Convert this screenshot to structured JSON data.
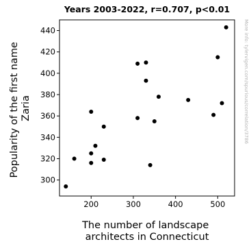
{
  "chart_data": {
    "type": "scatter",
    "title": "Years 2003-2022, r=0.707, p<0.01",
    "xlabel": [
      "The number of landscape",
      "architects in Connecticut"
    ],
    "ylabel": [
      "Popularity of the first name",
      "Zaria"
    ],
    "xlim": [
      125,
      540
    ],
    "ylim": [
      285,
      450
    ],
    "xticks": [
      100,
      200,
      300,
      400,
      500
    ],
    "yticks": [
      300,
      320,
      340,
      360,
      380,
      400,
      420,
      440
    ],
    "grid": false,
    "point_color": "#000000",
    "points": [
      {
        "x": 140,
        "y": 294
      },
      {
        "x": 160,
        "y": 320
      },
      {
        "x": 200,
        "y": 364
      },
      {
        "x": 200,
        "y": 325
      },
      {
        "x": 200,
        "y": 316
      },
      {
        "x": 210,
        "y": 332
      },
      {
        "x": 230,
        "y": 350
      },
      {
        "x": 230,
        "y": 319
      },
      {
        "x": 310,
        "y": 409
      },
      {
        "x": 310,
        "y": 358
      },
      {
        "x": 330,
        "y": 410
      },
      {
        "x": 330,
        "y": 393
      },
      {
        "x": 340,
        "y": 314
      },
      {
        "x": 350,
        "y": 355
      },
      {
        "x": 360,
        "y": 378
      },
      {
        "x": 430,
        "y": 375
      },
      {
        "x": 490,
        "y": 361
      },
      {
        "x": 500,
        "y": 415
      },
      {
        "x": 510,
        "y": 372
      },
      {
        "x": 520,
        "y": 443
      }
    ]
  },
  "watermark": "More info: tylervigen.com/spurious/correlation/3786"
}
